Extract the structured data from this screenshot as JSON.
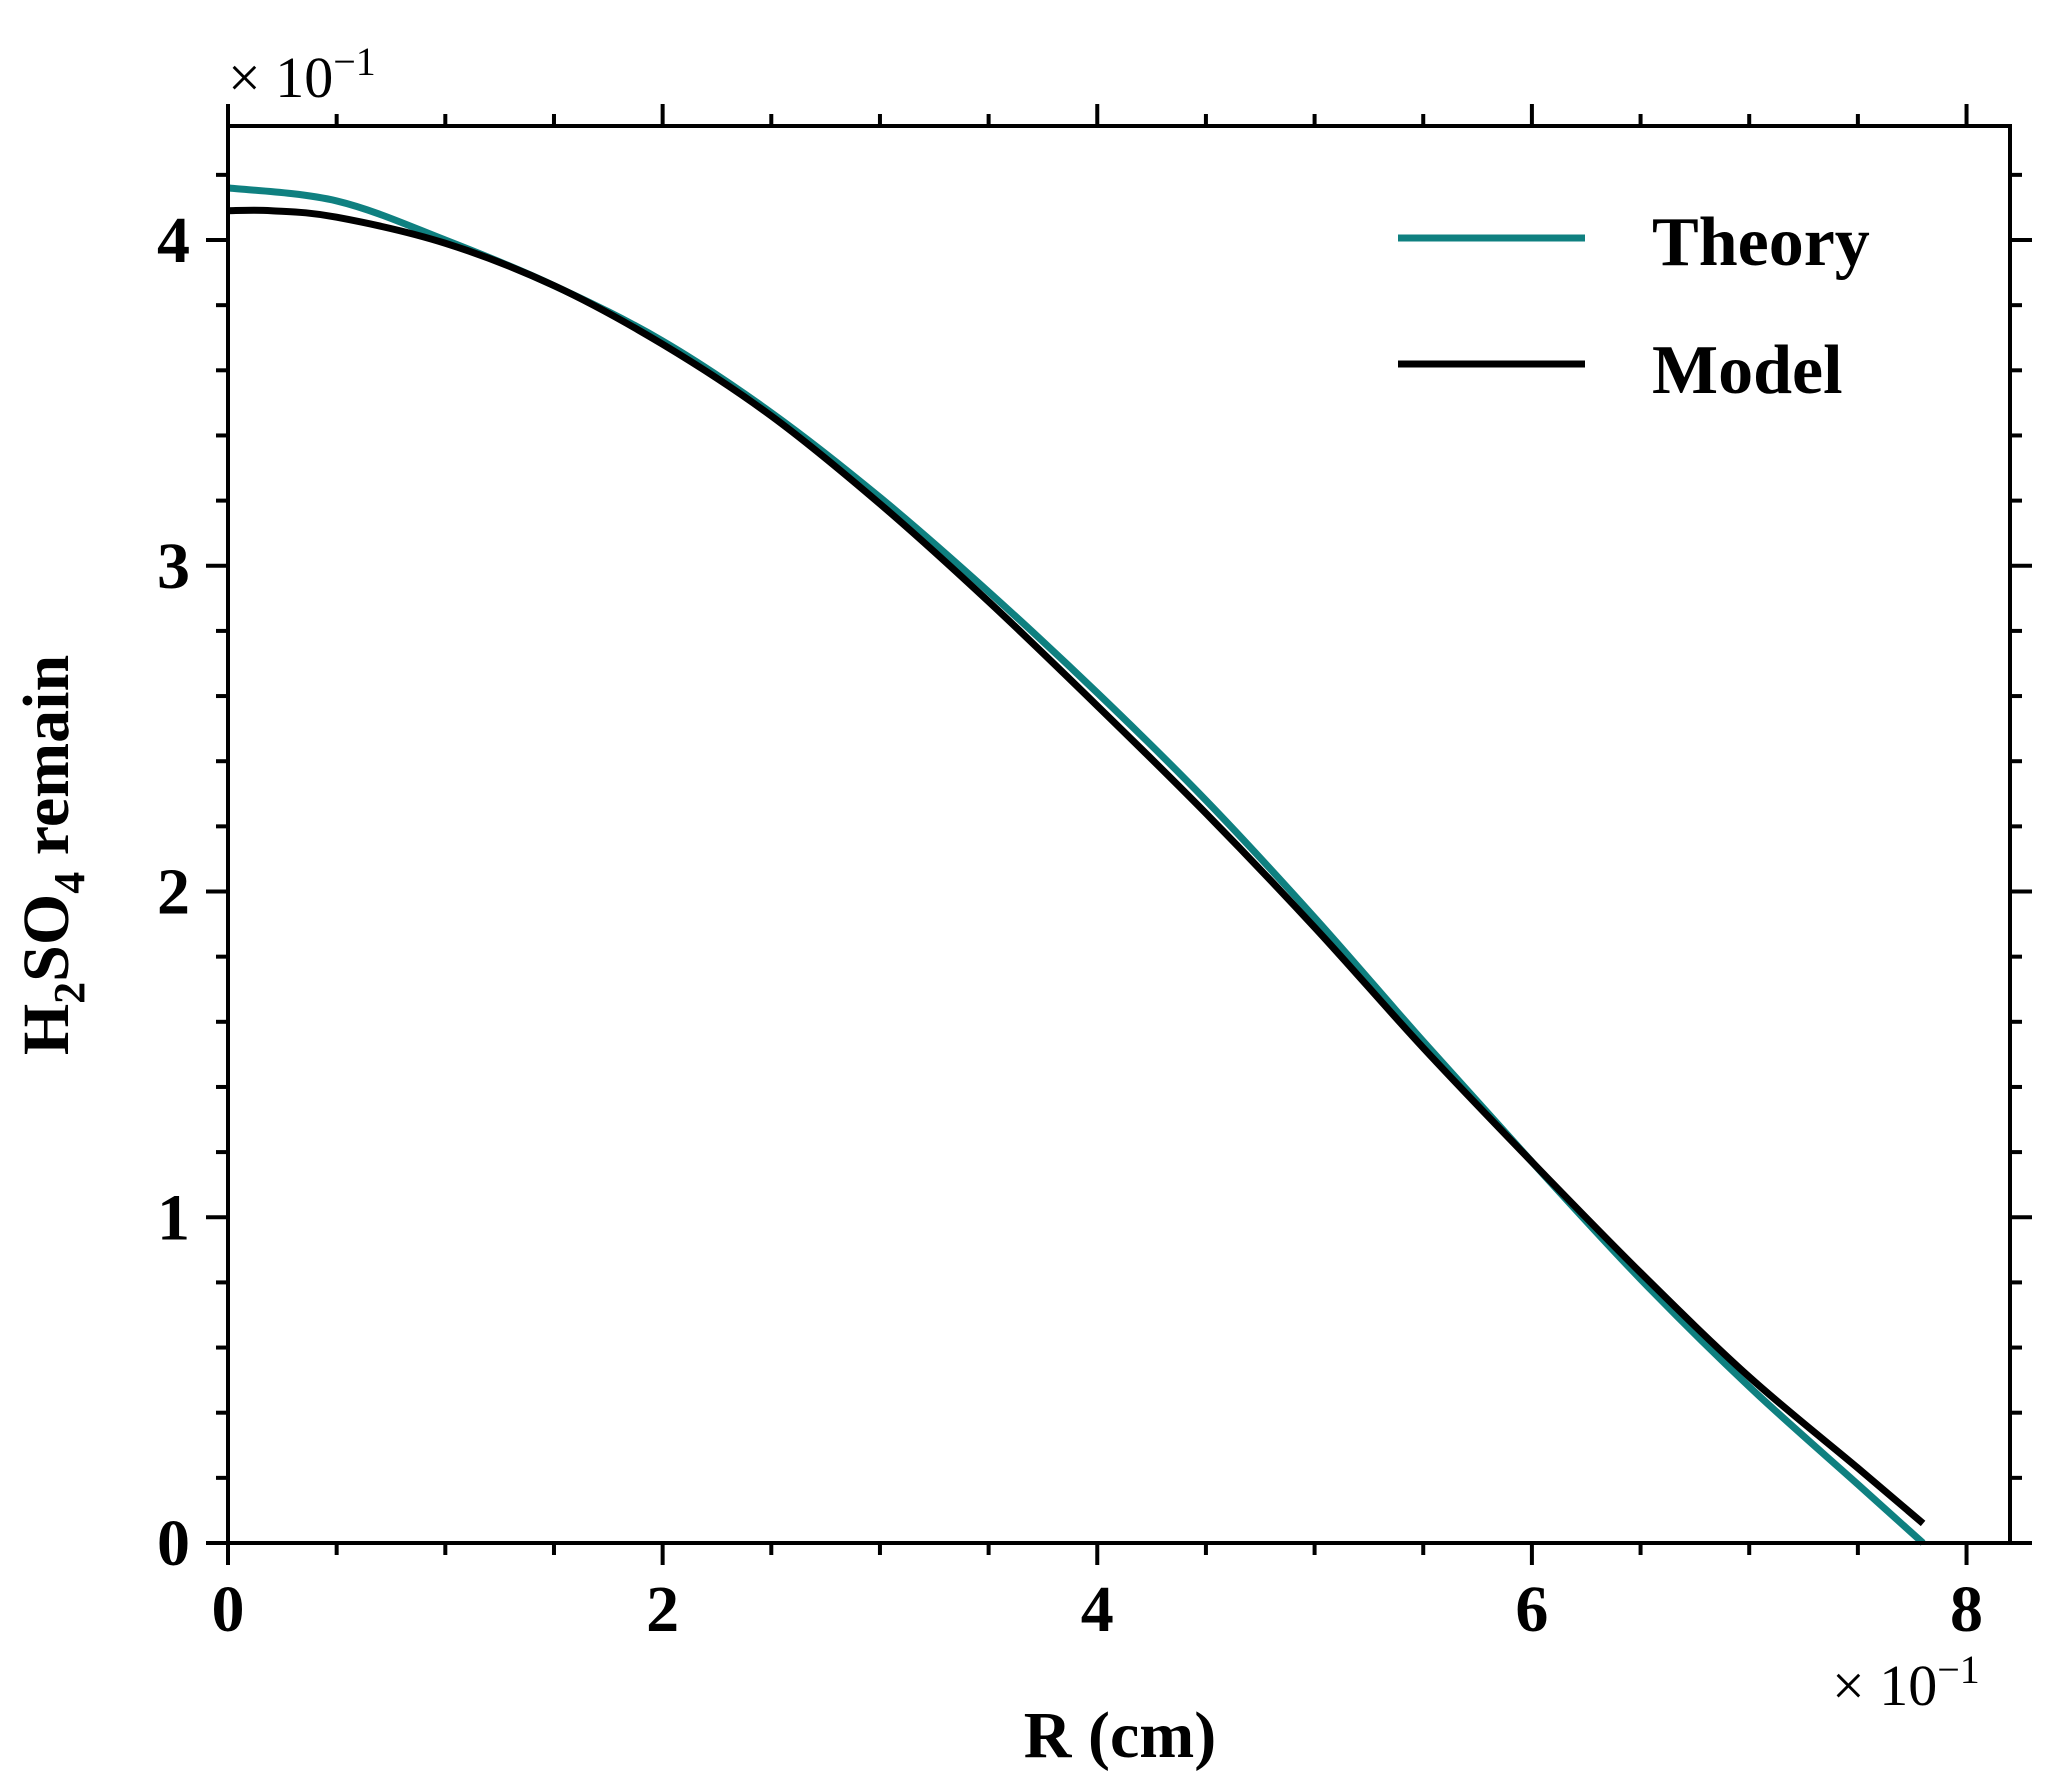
{
  "chart_data": {
    "type": "line",
    "xlabel": "R (cm)",
    "ylabel_parts": {
      "a": "H",
      "sub1": "2",
      "b": "SO",
      "sub2": "4",
      "c": " remain"
    },
    "x_multiplier": "× 10",
    "x_multiplier_exp": "−1",
    "y_multiplier": "× 10",
    "y_multiplier_exp": "−1",
    "xlim": [
      0,
      8.2
    ],
    "ylim": [
      0,
      4.35
    ],
    "x_ticks": [
      "0",
      "2",
      "4",
      "6",
      "8"
    ],
    "y_ticks": [
      "0",
      "1",
      "2",
      "3",
      "4"
    ],
    "grid": false,
    "legend_position": "top-right",
    "series": [
      {
        "name": "Theory",
        "color": "#0f8080",
        "x": [
          0,
          0.5,
          1.0,
          1.5,
          2.0,
          2.5,
          3.0,
          3.5,
          4.0,
          4.5,
          5.0,
          5.5,
          6.0,
          6.5,
          7.0,
          7.5,
          7.8
        ],
        "y": [
          4.16,
          4.12,
          4.0,
          3.86,
          3.69,
          3.47,
          3.21,
          2.92,
          2.61,
          2.28,
          1.92,
          1.54,
          1.17,
          0.81,
          0.48,
          0.18,
          0.0
        ]
      },
      {
        "name": "Model",
        "color": "#000000",
        "x": [
          0,
          0.2,
          0.5,
          1.0,
          1.5,
          2.0,
          2.5,
          3.0,
          3.5,
          4.0,
          4.5,
          5.0,
          5.5,
          6.0,
          6.5,
          7.0,
          7.5,
          7.8
        ],
        "y": [
          4.09,
          4.09,
          4.07,
          3.99,
          3.86,
          3.68,
          3.46,
          3.19,
          2.89,
          2.57,
          2.24,
          1.89,
          1.52,
          1.17,
          0.83,
          0.51,
          0.23,
          0.06
        ]
      }
    ]
  }
}
